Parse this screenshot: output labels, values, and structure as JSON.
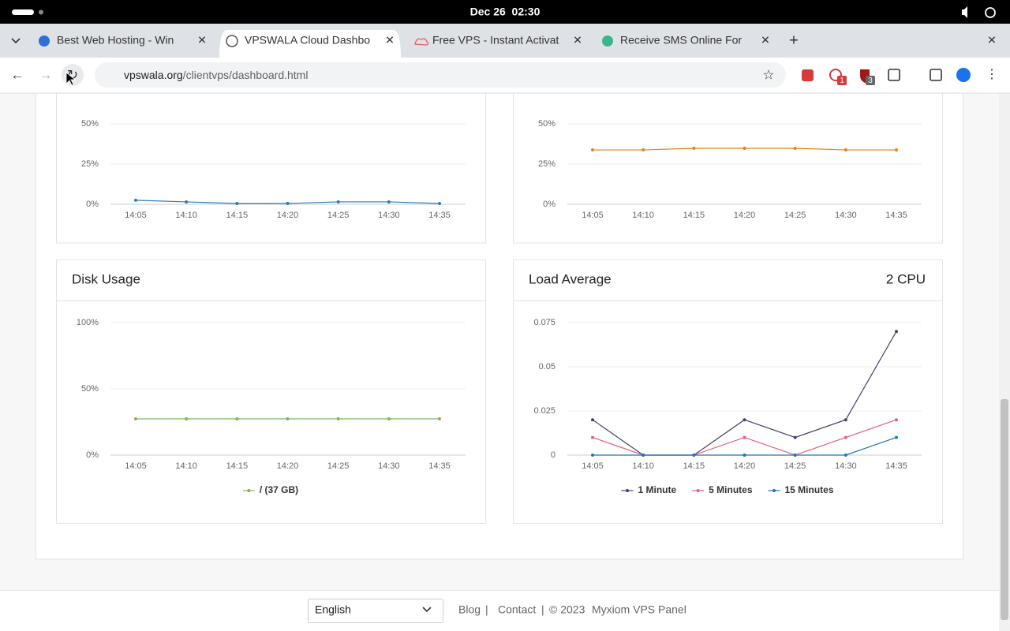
{
  "system_bar": {
    "clock": "Dec 26  02:30"
  },
  "browser": {
    "tabs": [
      "Best Web Hosting - Win",
      "VPSWALA Cloud Dashbo",
      "Free VPS - Instant Activat",
      "Receive SMS Online For"
    ],
    "url_host": "vpswala.org",
    "url_path": "/clientvps/dashboard.html",
    "badges": [
      1,
      3
    ]
  },
  "chart_data": [
    {
      "type": "line",
      "categories": [
        "14:05",
        "14:10",
        "14:15",
        "14:20",
        "14:25",
        "14:30",
        "14:35"
      ],
      "series": [
        {
          "color": "#2b7bb9",
          "values": [
            2.5,
            1.5,
            0.5,
            0.5,
            1.5,
            1.5,
            0.5
          ]
        }
      ],
      "ylim": [
        0,
        50
      ],
      "yticks": [
        {
          "value": 0,
          "label": "0%"
        },
        {
          "value": 25,
          "label": "25%"
        },
        {
          "value": 50,
          "label": "50%"
        }
      ],
      "grid": true
    },
    {
      "type": "line",
      "categories": [
        "14:05",
        "14:10",
        "14:15",
        "14:20",
        "14:25",
        "14:30",
        "14:35"
      ],
      "series": [
        {
          "color": "#e8820c",
          "values": [
            33.8,
            33.8,
            34.8,
            34.8,
            34.8,
            33.8,
            33.8
          ]
        }
      ],
      "ylim": [
        0,
        50
      ],
      "yticks": [
        {
          "value": 0,
          "label": "0%"
        },
        {
          "value": 25,
          "label": "25%"
        },
        {
          "value": 50,
          "label": "50%"
        }
      ],
      "grid": true
    },
    {
      "type": "line",
      "title": "Disk Usage",
      "categories": [
        "14:05",
        "14:10",
        "14:15",
        "14:20",
        "14:25",
        "14:30",
        "14:35"
      ],
      "series": [
        {
          "name": "/ (37 GB)",
          "color": "#7cb55a",
          "values": [
            27.4,
            27.4,
            27.4,
            27.4,
            27.4,
            27.4,
            27.4
          ]
        }
      ],
      "ylim": [
        0,
        100
      ],
      "yticks": [
        {
          "value": 0,
          "label": "0%"
        },
        {
          "value": 50,
          "label": "50%"
        },
        {
          "value": 100,
          "label": "100%"
        }
      ],
      "grid": true
    },
    {
      "type": "line",
      "title": "Load Average",
      "annotation": "2 CPU",
      "categories": [
        "14:05",
        "14:10",
        "14:15",
        "14:20",
        "14:25",
        "14:30",
        "14:35"
      ],
      "series": [
        {
          "name": "1 Minute",
          "color": "#4b3f6b",
          "values": [
            0.02,
            0,
            0,
            0.02,
            0.01,
            0.02,
            0.07
          ]
        },
        {
          "name": "5 Minutes",
          "color": "#e0607e",
          "values": [
            0.01,
            0,
            0,
            0.01,
            0,
            0.01,
            0.02
          ]
        },
        {
          "name": "15 Minutes",
          "color": "#1f78b4",
          "values": [
            0,
            0,
            0,
            0,
            0,
            0,
            0.01
          ]
        }
      ],
      "ylim": [
        0,
        0.075
      ],
      "yticks": [
        0,
        0.025,
        0.05,
        0.075
      ],
      "grid": true
    }
  ],
  "footer": {
    "language": "English",
    "links": [
      "Blog",
      "Contact"
    ],
    "separator": "|",
    "copyright": "© 2023",
    "brand": "Myxiom VPS Panel"
  }
}
